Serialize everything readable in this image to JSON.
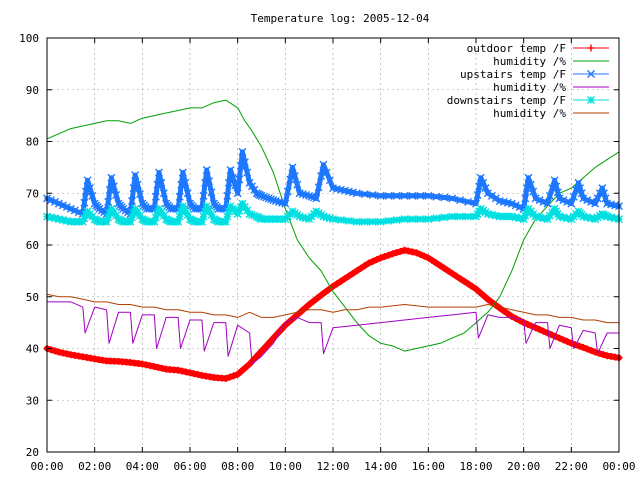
{
  "chart_data": {
    "type": "line",
    "title": "Temperature log: 2005-12-04",
    "xlabel": "",
    "ylabel": "",
    "xlim": [
      0,
      24
    ],
    "ylim": [
      20,
      100
    ],
    "grid": true,
    "legend_position": "top-right",
    "x_tick_labels": [
      "00:00",
      "02:00",
      "04:00",
      "06:00",
      "08:00",
      "10:00",
      "12:00",
      "14:00",
      "16:00",
      "18:00",
      "20:00",
      "22:00",
      "00:00"
    ],
    "y_tick_labels": [
      "20",
      "30",
      "40",
      "50",
      "60",
      "70",
      "80",
      "90",
      "100"
    ],
    "series": [
      {
        "name": "outdoor temp /F",
        "color": "#ff0000",
        "marker": "plus",
        "style": "thick",
        "x": [
          0,
          0.5,
          1,
          1.5,
          2,
          2.5,
          3,
          3.5,
          4,
          4.5,
          5,
          5.5,
          6,
          6.5,
          7,
          7.5,
          8,
          8.5,
          9,
          9.5,
          10,
          10.5,
          11,
          11.5,
          12,
          12.5,
          13,
          13.5,
          14,
          14.5,
          15,
          15.5,
          16,
          16.5,
          17,
          17.5,
          18,
          18.5,
          19,
          19.5,
          20,
          20.5,
          21,
          21.5,
          22,
          22.5,
          23,
          23.5,
          24
        ],
        "y": [
          40,
          39.3,
          38.8,
          38.4,
          38,
          37.6,
          37.5,
          37.3,
          37,
          36.5,
          36,
          35.8,
          35.3,
          34.8,
          34.4,
          34.2,
          35,
          37,
          39.5,
          42,
          44.5,
          46.5,
          48.5,
          50.3,
          52,
          53.5,
          55,
          56.5,
          57.5,
          58.3,
          59,
          58.5,
          57.5,
          56,
          54.5,
          53,
          51.5,
          49.5,
          47.8,
          46.2,
          45,
          44,
          43,
          42,
          41,
          40.2,
          39.3,
          38.6,
          38.2
        ]
      },
      {
        "name": "humidity /%",
        "color": "#00a000",
        "marker": "none",
        "style": "thin",
        "x": [
          0,
          0.5,
          1,
          1.5,
          2,
          2.5,
          3,
          3.5,
          4,
          4.5,
          5,
          5.5,
          6,
          6.5,
          7,
          7.5,
          8,
          8.3,
          8.6,
          9,
          9.5,
          10,
          10.5,
          11,
          11.5,
          12,
          12.5,
          13,
          13.5,
          14,
          14.5,
          15,
          15.5,
          16,
          16.5,
          17,
          17.5,
          18,
          18.5,
          19,
          19.5,
          20,
          20.5,
          21,
          21.5,
          22,
          22.5,
          23,
          23.5,
          24
        ],
        "y": [
          80.5,
          81.5,
          82.5,
          83,
          83.5,
          84,
          84,
          83.5,
          84.5,
          85,
          85.5,
          86,
          86.5,
          86.5,
          87.5,
          88,
          86.5,
          84,
          82,
          79,
          74,
          67,
          61,
          57.5,
          55,
          51,
          48,
          45,
          42.5,
          41,
          40.5,
          39.5,
          40,
          40.5,
          41,
          42,
          43,
          45,
          47,
          50,
          55,
          61,
          65,
          67.5,
          70,
          71,
          73,
          75,
          76.5,
          78
        ]
      },
      {
        "name": "upstairs temp /F",
        "color": "#1e78ff",
        "marker": "cross",
        "style": "thick",
        "x": [
          0,
          0.5,
          1,
          1.5,
          1.7,
          2,
          2.2,
          2.5,
          2.7,
          3,
          3.2,
          3.5,
          3.7,
          4,
          4.2,
          4.5,
          4.7,
          5,
          5.2,
          5.5,
          5.7,
          6,
          6.2,
          6.5,
          6.7,
          7,
          7.2,
          7.5,
          7.7,
          8,
          8.2,
          8.5,
          8.8,
          9,
          9.3,
          9.6,
          10,
          10.3,
          10.6,
          11,
          11.3,
          11.6,
          12,
          12.5,
          13,
          14,
          15,
          16,
          17,
          18,
          18.2,
          18.5,
          19,
          19.5,
          20,
          20.2,
          20.5,
          21,
          21.3,
          21.5,
          22,
          22.3,
          22.5,
          23,
          23.3,
          23.5,
          24
        ],
        "y": [
          69,
          68,
          67,
          66,
          72.5,
          68,
          67,
          66,
          73,
          68,
          67,
          66,
          73.5,
          68,
          67,
          67,
          74,
          68,
          67,
          67,
          74,
          68,
          67,
          67,
          74.5,
          68,
          67,
          67,
          74.5,
          70,
          78,
          72,
          70,
          69.5,
          69,
          68.5,
          68,
          75,
          70,
          69.5,
          69,
          75.5,
          71,
          70.5,
          70,
          69.5,
          69.5,
          69.5,
          69,
          68,
          73,
          70,
          68.5,
          68,
          67,
          73,
          69,
          68,
          72.5,
          69,
          68,
          72,
          69,
          68,
          71,
          68,
          67.5
        ]
      },
      {
        "name": "humidity /%",
        "color": "#a000c0",
        "marker": "none",
        "style": "thin",
        "x": [
          0,
          0.5,
          1,
          1.5,
          1.6,
          2,
          2.5,
          2.6,
          3,
          3.5,
          3.6,
          4,
          4.5,
          4.6,
          5,
          5.5,
          5.6,
          6,
          6.5,
          6.6,
          7,
          7.5,
          7.6,
          8,
          8.5,
          8.6,
          9,
          9.5,
          10,
          10.5,
          11,
          11.5,
          11.6,
          12,
          13,
          14,
          15,
          16,
          17,
          18,
          18.1,
          18.5,
          19,
          19.5,
          20,
          20.1,
          20.5,
          21,
          21.1,
          21.5,
          22,
          22.1,
          22.5,
          23,
          23.1,
          23.5,
          24
        ],
        "y": [
          49,
          49,
          49,
          48,
          43,
          48,
          47.5,
          41,
          47,
          47,
          41,
          46.5,
          46.5,
          40,
          46,
          46,
          40,
          45.5,
          45.5,
          39.5,
          45,
          45,
          38.5,
          44.5,
          43,
          37,
          38.5,
          41,
          45,
          46,
          45,
          45,
          39,
          44,
          44.5,
          45,
          45.5,
          46,
          46.5,
          47,
          42,
          46.5,
          46,
          46,
          45.5,
          41,
          45,
          45,
          40,
          44.5,
          44,
          40,
          43.5,
          43,
          39,
          43,
          43
        ]
      },
      {
        "name": "downstairs temp /F",
        "color": "#00e0e0",
        "marker": "star",
        "style": "thick",
        "x": [
          0,
          0.5,
          1,
          1.5,
          1.7,
          2,
          2.2,
          2.5,
          2.7,
          3,
          3.2,
          3.5,
          3.7,
          4,
          4.2,
          4.5,
          4.7,
          5,
          5.2,
          5.5,
          5.7,
          6,
          6.2,
          6.5,
          6.7,
          7,
          7.2,
          7.5,
          7.7,
          8,
          8.2,
          8.5,
          8.8,
          9,
          9.5,
          10,
          10.3,
          10.6,
          11,
          11.3,
          11.6,
          12,
          13,
          14,
          15,
          16,
          17,
          18,
          18.2,
          18.5,
          19,
          19.5,
          20,
          20.2,
          20.5,
          21,
          21.3,
          21.5,
          22,
          22.3,
          22.5,
          23,
          23.3,
          23.5,
          24
        ],
        "y": [
          65.5,
          65,
          64.5,
          64.5,
          66.5,
          65,
          64.5,
          64.5,
          67,
          65,
          64.5,
          64.5,
          67,
          65,
          64.5,
          64.5,
          67,
          65,
          64.5,
          64.5,
          67.5,
          65,
          64.5,
          64.5,
          67.5,
          65,
          64.5,
          64.5,
          67.5,
          66,
          68,
          66,
          65.5,
          65,
          65,
          65,
          66.5,
          65.5,
          65,
          66.5,
          65.5,
          65,
          64.5,
          64.5,
          65,
          65,
          65.5,
          65.5,
          67,
          66,
          65.5,
          65.5,
          65,
          67,
          65.5,
          65,
          67,
          65.5,
          65,
          66.5,
          65.5,
          65,
          66,
          65.5,
          65
        ]
      },
      {
        "name": "humidity /%",
        "color": "#b04000",
        "marker": "none",
        "style": "thin",
        "x": [
          0,
          0.5,
          1,
          1.5,
          2,
          2.5,
          3,
          3.5,
          4,
          4.5,
          5,
          5.5,
          6,
          6.5,
          7,
          7.5,
          8,
          8.5,
          9,
          9.5,
          10,
          10.5,
          11,
          11.5,
          12,
          12.5,
          13,
          13.5,
          14,
          15,
          16,
          17,
          18,
          18.5,
          19,
          19.5,
          20,
          20.5,
          21,
          21.5,
          22,
          22.5,
          23,
          23.5,
          24
        ],
        "y": [
          50.5,
          50,
          50,
          49.5,
          49,
          49,
          48.5,
          48.5,
          48,
          48,
          47.5,
          47.5,
          47,
          47,
          46.5,
          46.5,
          46,
          47,
          46,
          46,
          46.5,
          47,
          47.5,
          47.5,
          47,
          47.5,
          47.5,
          48,
          48,
          48.5,
          48,
          48,
          48,
          48.5,
          48,
          47.5,
          47,
          46.5,
          46.5,
          46,
          46,
          45.5,
          45.5,
          45,
          45
        ]
      }
    ]
  }
}
